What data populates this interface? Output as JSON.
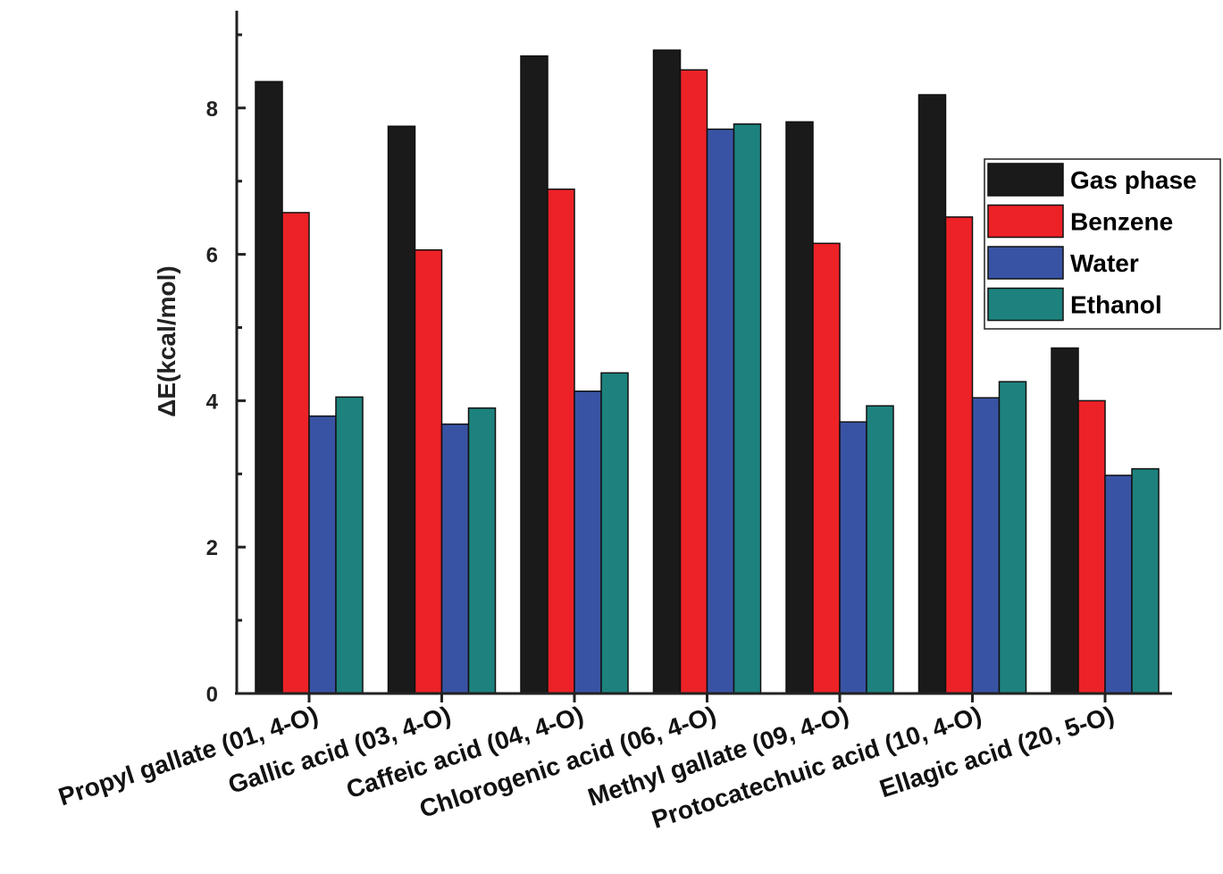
{
  "chart_data": {
    "type": "bar",
    "title": "",
    "xlabel": "",
    "ylabel": "ΔE(kcal/mol)",
    "ylim": [
      0,
      9.3
    ],
    "yticks": [
      0,
      2,
      4,
      6,
      8
    ],
    "grid": false,
    "legend_position": "top-right",
    "categories": [
      "Propyl gallate (01, 4-O)",
      "Gallic acid (03, 4-O)",
      "Caffeic acid (04, 4-O)",
      "Chlorogenic acid (06, 4-O)",
      "Methyl gallate (09, 4-O)",
      "Protocatechuic acid (10, 4-O)",
      "Ellagic acid (20, 5-O)"
    ],
    "series": [
      {
        "name": "Gas phase",
        "color": "#1a1a1a",
        "values": [
          8.36,
          7.75,
          8.71,
          8.79,
          7.81,
          8.18,
          4.72
        ]
      },
      {
        "name": "Benzene",
        "color": "#ec2227",
        "values": [
          6.57,
          6.06,
          6.89,
          8.52,
          6.15,
          6.51,
          4.0
        ]
      },
      {
        "name": "Water",
        "color": "#3953a4",
        "values": [
          3.79,
          3.68,
          4.13,
          7.71,
          3.71,
          4.04,
          2.98
        ]
      },
      {
        "name": "Ethanol",
        "color": "#1d827d",
        "values": [
          4.05,
          3.9,
          4.38,
          7.78,
          3.93,
          4.26,
          3.07
        ]
      }
    ]
  }
}
